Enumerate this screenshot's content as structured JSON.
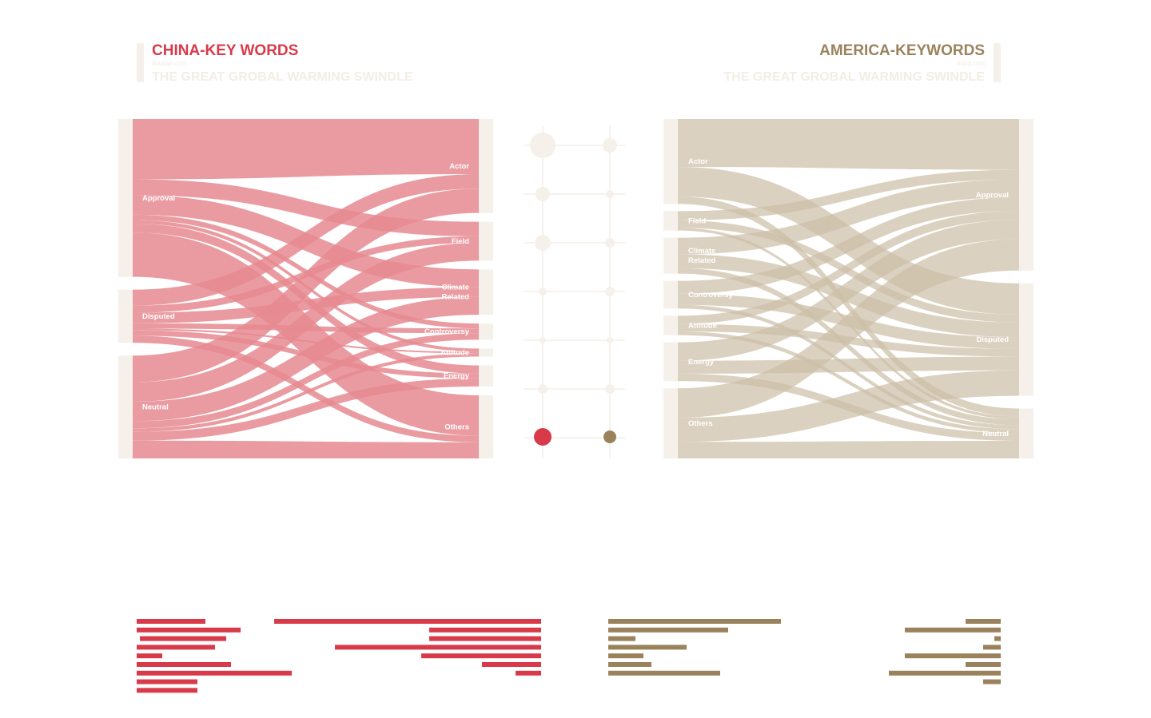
{
  "colors": {
    "china": "#d93a49",
    "china_flow": "#e68990",
    "america": "#9a835c",
    "america_flow": "#cdbfa7",
    "node_bar": "#f5f1ea",
    "grid": "#ece7dd",
    "subtitle": "#f3eee5"
  },
  "china": {
    "title": "CHINA-KEY WORDS",
    "source": "douban.com",
    "subtitle": "THE GREAT GROBAL WARMING SWINDLE"
  },
  "america": {
    "title": "AMERICA-KEYWORDS",
    "source": "imbd.com",
    "subtitle": "THE GREAT GROBAL WARMING SWINDLE"
  },
  "chart_data": [
    {
      "type": "sankey",
      "panel": "china",
      "sources": [
        "Approval",
        "Disputed",
        "Neutral"
      ],
      "targets": [
        "Actor",
        "Field",
        "Climate Related",
        "Controversy",
        "Attitude",
        "Energy",
        "Others"
      ],
      "flows": [
        {
          "source": "Approval",
          "target": "Actor",
          "value": 68
        },
        {
          "source": "Approval",
          "target": "Field",
          "value": 18
        },
        {
          "source": "Approval",
          "target": "Climate Related",
          "value": 22
        },
        {
          "source": "Approval",
          "target": "Controversy",
          "value": 6
        },
        {
          "source": "Approval",
          "target": "Attitude",
          "value": 4
        },
        {
          "source": "Approval",
          "target": "Energy",
          "value": 10
        },
        {
          "source": "Approval",
          "target": "Others",
          "value": 50
        },
        {
          "source": "Disputed",
          "target": "Actor",
          "value": 18
        },
        {
          "source": "Disputed",
          "target": "Field",
          "value": 8
        },
        {
          "source": "Disputed",
          "target": "Climate Related",
          "value": 12
        },
        {
          "source": "Disputed",
          "target": "Controversy",
          "value": 6
        },
        {
          "source": "Disputed",
          "target": "Attitude",
          "value": 2
        },
        {
          "source": "Disputed",
          "target": "Energy",
          "value": 6
        },
        {
          "source": "Disputed",
          "target": "Others",
          "value": 8
        },
        {
          "source": "Neutral",
          "target": "Actor",
          "value": 30
        },
        {
          "source": "Neutral",
          "target": "Field",
          "value": 22
        },
        {
          "source": "Neutral",
          "target": "Climate Related",
          "value": 22
        },
        {
          "source": "Neutral",
          "target": "Controversy",
          "value": 8
        },
        {
          "source": "Neutral",
          "target": "Attitude",
          "value": 4
        },
        {
          "source": "Neutral",
          "target": "Energy",
          "value": 10
        },
        {
          "source": "Neutral",
          "target": "Others",
          "value": 20
        }
      ]
    },
    {
      "type": "sankey",
      "panel": "america",
      "sources": [
        "Actor",
        "Field",
        "Climate Related",
        "Controversy",
        "Attitude",
        "Energy",
        "Others"
      ],
      "targets": [
        "Approval",
        "Disputed",
        "Neutral"
      ],
      "flows": [
        {
          "source": "Actor",
          "target": "Approval",
          "value": 52
        },
        {
          "source": "Actor",
          "target": "Disputed",
          "value": 32
        },
        {
          "source": "Actor",
          "target": "Neutral",
          "value": 8
        },
        {
          "source": "Field",
          "target": "Approval",
          "value": 10
        },
        {
          "source": "Field",
          "target": "Disputed",
          "value": 8
        },
        {
          "source": "Field",
          "target": "Neutral",
          "value": 3
        },
        {
          "source": "Climate Related",
          "target": "Approval",
          "value": 18
        },
        {
          "source": "Climate Related",
          "target": "Disputed",
          "value": 15
        },
        {
          "source": "Climate Related",
          "target": "Neutral",
          "value": 6
        },
        {
          "source": "Controversy",
          "target": "Approval",
          "value": 14
        },
        {
          "source": "Controversy",
          "target": "Disputed",
          "value": 12
        },
        {
          "source": "Controversy",
          "target": "Neutral",
          "value": 4
        },
        {
          "source": "Attitude",
          "target": "Approval",
          "value": 9
        },
        {
          "source": "Attitude",
          "target": "Disputed",
          "value": 8
        },
        {
          "source": "Attitude",
          "target": "Neutral",
          "value": 4
        },
        {
          "source": "Energy",
          "target": "Approval",
          "value": 20
        },
        {
          "source": "Energy",
          "target": "Disputed",
          "value": 14
        },
        {
          "source": "Energy",
          "target": "Neutral",
          "value": 8
        },
        {
          "source": "Others",
          "target": "Approval",
          "value": 32
        },
        {
          "source": "Others",
          "target": "Disputed",
          "value": 26
        },
        {
          "source": "Others",
          "target": "Neutral",
          "value": 18
        }
      ]
    },
    {
      "type": "scatter",
      "panel": "comparison",
      "rows": 7,
      "columns": [
        "china",
        "america"
      ],
      "values": {
        "china": [
          16,
          9,
          10,
          5,
          4,
          6,
          11
        ],
        "america": [
          9,
          5,
          6,
          6,
          4,
          6,
          8
        ]
      },
      "highlight_row": 7
    },
    {
      "type": "bar",
      "panel": "china",
      "groups": [
        {
          "align": "left",
          "values": [
            86,
            130,
            108,
            98,
            32,
            118,
            194,
            76,
            76
          ]
        },
        {
          "align": "right",
          "values": [
            334,
            140,
            140,
            258,
            150,
            74,
            32
          ]
        }
      ]
    },
    {
      "type": "bar",
      "panel": "america",
      "groups": [
        {
          "align": "left",
          "values": [
            216,
            150,
            34,
            98,
            44,
            54,
            140
          ]
        },
        {
          "align": "right",
          "values": [
            44,
            120,
            8,
            22,
            120,
            44,
            140,
            22
          ]
        }
      ]
    }
  ]
}
